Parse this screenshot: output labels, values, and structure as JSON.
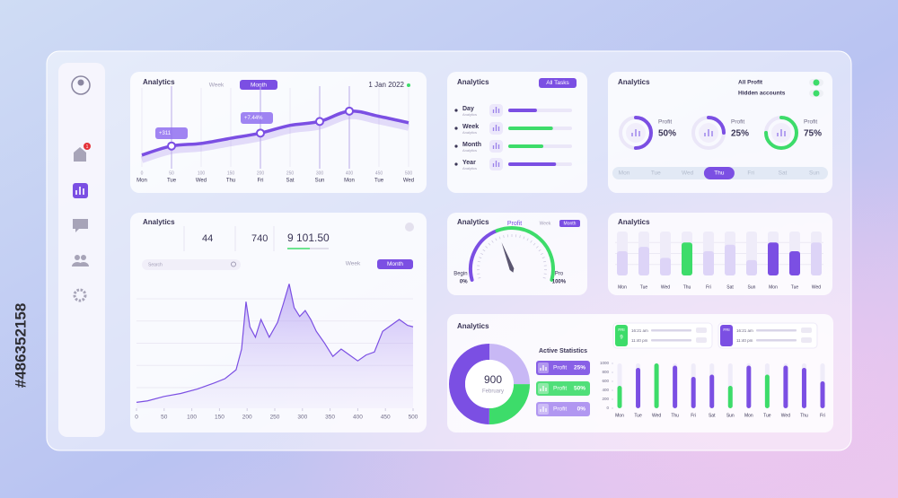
{
  "watermark": "#486352158",
  "sidebar": {
    "badge": "1"
  },
  "panel_trend": {
    "title": "Analytics",
    "tabs": [
      "Week",
      "Month"
    ],
    "date": "1 Jan 2022",
    "annotations": [
      "+311",
      "+7.44%"
    ]
  },
  "panel_tasks": {
    "title": "Analytics",
    "button": "All Tasks"
  },
  "panel_profit": {
    "title": "Analytics",
    "toggles": [
      "All Profit",
      "Hidden accounts"
    ],
    "days": [
      "Mon",
      "Tue",
      "Wed",
      "Thu",
      "Fri",
      "Sat",
      "Sun"
    ],
    "selected_day": 3
  },
  "panel_area": {
    "title": "Analytics",
    "stats": [
      "44",
      "740",
      "9 101.50"
    ],
    "tabs": [
      "Week",
      "Month"
    ],
    "search": "Search"
  },
  "panel_gauge": {
    "title": "Analytics",
    "subtitle": "Profit",
    "tabs": [
      "Week",
      "Month"
    ],
    "left_label": "Begin",
    "right_label": "Pro"
  },
  "panel_bars": {
    "title": "Analytics"
  },
  "panel_stats": {
    "title": "Analytics",
    "heading": "Active Statistics",
    "cards": [
      {
        "day": "FRI",
        "date": "9",
        "times": [
          "16:21 am",
          "11:40 pm"
        ]
      },
      {
        "day": "FRI",
        "times": [
          "16:21 am",
          "11:40 pm"
        ]
      }
    ]
  },
  "chart_data": [
    {
      "type": "line",
      "categories": [
        "Mon",
        "Tue",
        "Wed",
        "Thu",
        "Fri",
        "Sat",
        "Sun",
        "Mon",
        "Tue",
        "Wed"
      ],
      "sublabels": [
        0,
        50,
        100,
        150,
        200,
        250,
        300,
        400,
        450,
        500
      ],
      "values": [
        10,
        24,
        28,
        36,
        44,
        56,
        62,
        78,
        70,
        60
      ],
      "ylim": [
        0,
        100
      ],
      "color": "#7b4fe3",
      "markers": [
        1,
        4,
        6,
        7
      ]
    },
    {
      "type": "progress",
      "categories": [
        "Day",
        "Week",
        "Month",
        "Year"
      ],
      "sublabel": "Analytics",
      "values": [
        45,
        70,
        55,
        75
      ],
      "xlim": [
        0,
        100
      ],
      "colors": [
        "#7b4fe3",
        "#3ddc6a",
        "#3ddc6a",
        "#7b4fe3"
      ]
    },
    {
      "type": "donut",
      "categories": [
        "Profit",
        "Profit",
        "Profit"
      ],
      "values": [
        50,
        25,
        75
      ],
      "value_labels": [
        "50%",
        "25%",
        "75%"
      ],
      "colors": [
        "#7b4fe3",
        "#7b4fe3",
        "#3ddc6a"
      ]
    },
    {
      "type": "area",
      "x": [
        0,
        20,
        50,
        80,
        110,
        140,
        160,
        180,
        190,
        198,
        205,
        215,
        225,
        240,
        255,
        265,
        276,
        285,
        295,
        305,
        315,
        325,
        340,
        355,
        370,
        385,
        400,
        415,
        430,
        445,
        460,
        475,
        490,
        500
      ],
      "values": [
        4,
        5,
        8,
        10,
        13,
        17,
        20,
        26,
        40,
        72,
        55,
        48,
        60,
        48,
        58,
        70,
        84,
        68,
        62,
        66,
        60,
        52,
        44,
        35,
        40,
        36,
        32,
        36,
        38,
        52,
        56,
        60,
        56,
        55
      ],
      "xlim": [
        0,
        500
      ],
      "xticks": [
        0,
        50,
        100,
        150,
        200,
        250,
        300,
        350,
        400,
        450,
        500
      ],
      "ylim": [
        0,
        100
      ],
      "color": "#7b4fe3"
    },
    {
      "type": "gauge",
      "values": [
        40
      ],
      "xlim": [
        0,
        100
      ],
      "xticks": [
        {
          "value": 0,
          "label": "0%"
        },
        {
          "value": 100,
          "label": "100%"
        }
      ],
      "colors": [
        "#7b4fe3",
        "#3ddc6a"
      ]
    },
    {
      "type": "bar",
      "categories": [
        "Mon",
        "Tue",
        "Wed",
        "Thu",
        "Fri",
        "Sat",
        "Sun",
        "Mon",
        "Tue",
        "Wed"
      ],
      "values": [
        55,
        65,
        40,
        75,
        55,
        70,
        35,
        75,
        55,
        75
      ],
      "ylim": [
        0,
        100
      ],
      "colors": [
        "#ddd4f7",
        "#ddd4f7",
        "#ddd4f7",
        "#3ddc6a",
        "#ddd4f7",
        "#ddd4f7",
        "#ddd4f7",
        "#7b4fe3",
        "#7b4fe3",
        "#ddd4f7"
      ]
    },
    {
      "type": "donut",
      "values": [
        25,
        25,
        50
      ],
      "colors": [
        "#c8b8f5",
        "#3ddc6a",
        "#7b4fe3"
      ],
      "center_value": 900,
      "center_label": "February"
    },
    {
      "type": "stat-list",
      "categories": [
        "Profit",
        "Profit",
        "Profit"
      ],
      "values": [
        25,
        50,
        0
      ],
      "value_labels": [
        "25%",
        "50%",
        "0%"
      ],
      "colors": [
        "#7b4fe3",
        "#3ddc6a",
        "#a98cf0"
      ]
    },
    {
      "type": "bar",
      "categories": [
        "Mon",
        "Tue",
        "Wed",
        "Thu",
        "Fri",
        "Sat",
        "Sun",
        "Mon",
        "Tue",
        "Wed",
        "Thu",
        "Fri"
      ],
      "values": [
        500,
        900,
        1000,
        950,
        700,
        750,
        500,
        950,
        750,
        950,
        900,
        600
      ],
      "ylim": [
        0,
        1000
      ],
      "yticks": [
        0,
        200,
        400,
        600,
        800,
        1000
      ],
      "colors": [
        "#3ddc6a",
        "#7b4fe3",
        "#3ddc6a",
        "#7b4fe3",
        "#7b4fe3",
        "#7b4fe3",
        "#3ddc6a",
        "#7b4fe3",
        "#3ddc6a",
        "#7b4fe3",
        "#7b4fe3",
        "#7b4fe3"
      ]
    }
  ]
}
